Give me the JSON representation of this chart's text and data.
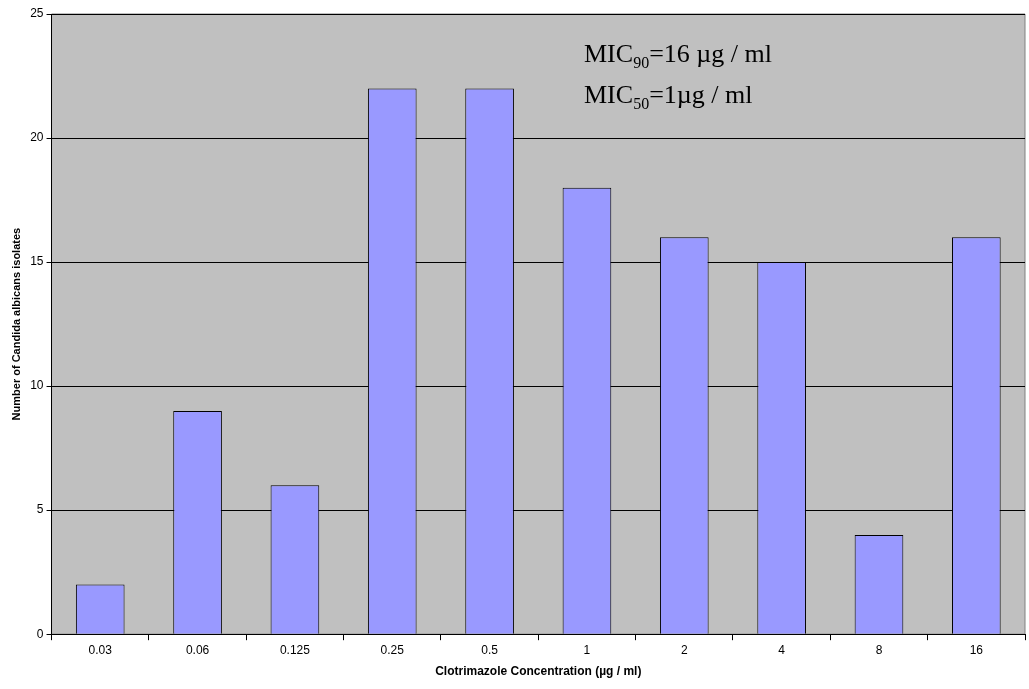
{
  "chart_data": {
    "type": "bar",
    "xlabel": "Clotrimazole Concentration (µg / ml)",
    "ylabel": "Number of Candida albicans isolates",
    "categories": [
      "0.03",
      "0.06",
      "0.125",
      "0.25",
      "0.5",
      "1",
      "2",
      "4",
      "8",
      "16"
    ],
    "values": [
      2,
      9,
      6,
      22,
      22,
      18,
      16,
      15,
      4,
      16
    ],
    "color": "#9999ff",
    "ylim": [
      0,
      25
    ],
    "yticks": [
      0,
      5,
      10,
      15,
      20,
      25
    ],
    "grid": "y",
    "annotations": [
      "MIC$_{90}$=16 µg / ml",
      "MIC$_{50}$=1µg / ml"
    ]
  }
}
